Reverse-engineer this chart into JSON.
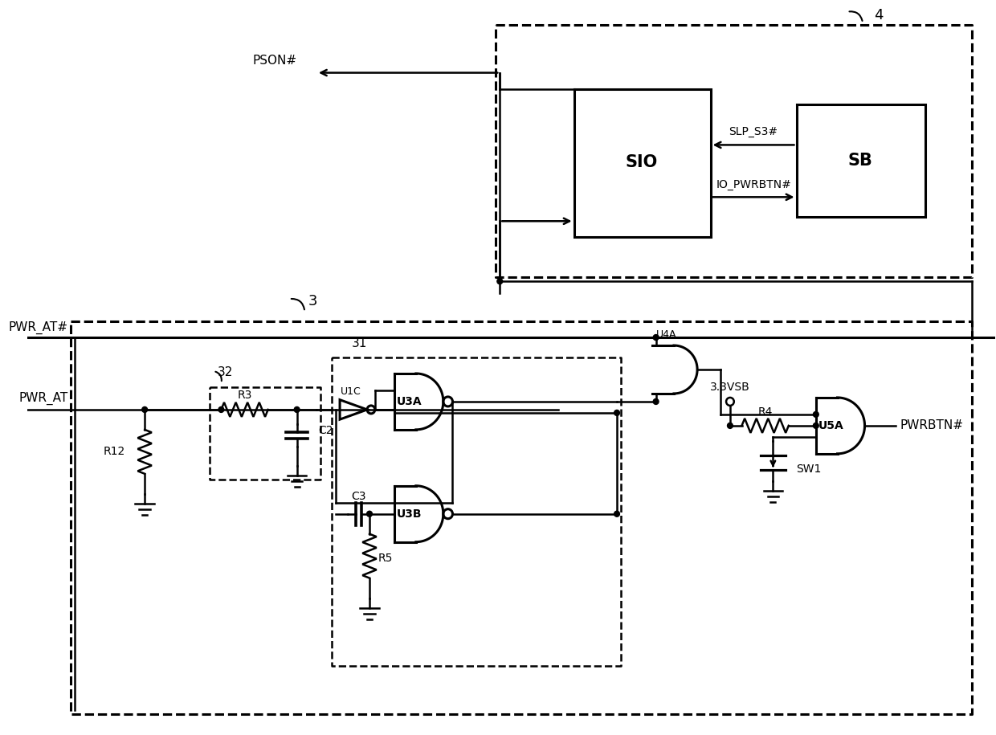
{
  "bg": "#ffffff",
  "lc": "#000000",
  "fw": 12.4,
  "fh": 9.15,
  "dpi": 100,
  "labels": {
    "PSON": "PSON#",
    "PWR_AT_hash": "PWR_AT#",
    "PWR_AT": "PWR_AT",
    "SLP_S3": "SLP_S3#",
    "IO_PWRBTN": "IO_PWRBTN#",
    "PWRBTN": "PWRBTN#",
    "VSB": "3.3VSB",
    "SIO": "SIO",
    "SB": "SB",
    "U1C": "U1C",
    "U3A": "U3A",
    "U3B": "U3B",
    "U4A": "U4A",
    "U5A": "U5A",
    "R3": "R3",
    "R4": "R4",
    "R5": "R5",
    "R12": "R12",
    "C2": "C2",
    "C3": "C3",
    "SW1": "SW1",
    "n3": "3",
    "n4": "4",
    "n31": "31",
    "n32": "32"
  }
}
